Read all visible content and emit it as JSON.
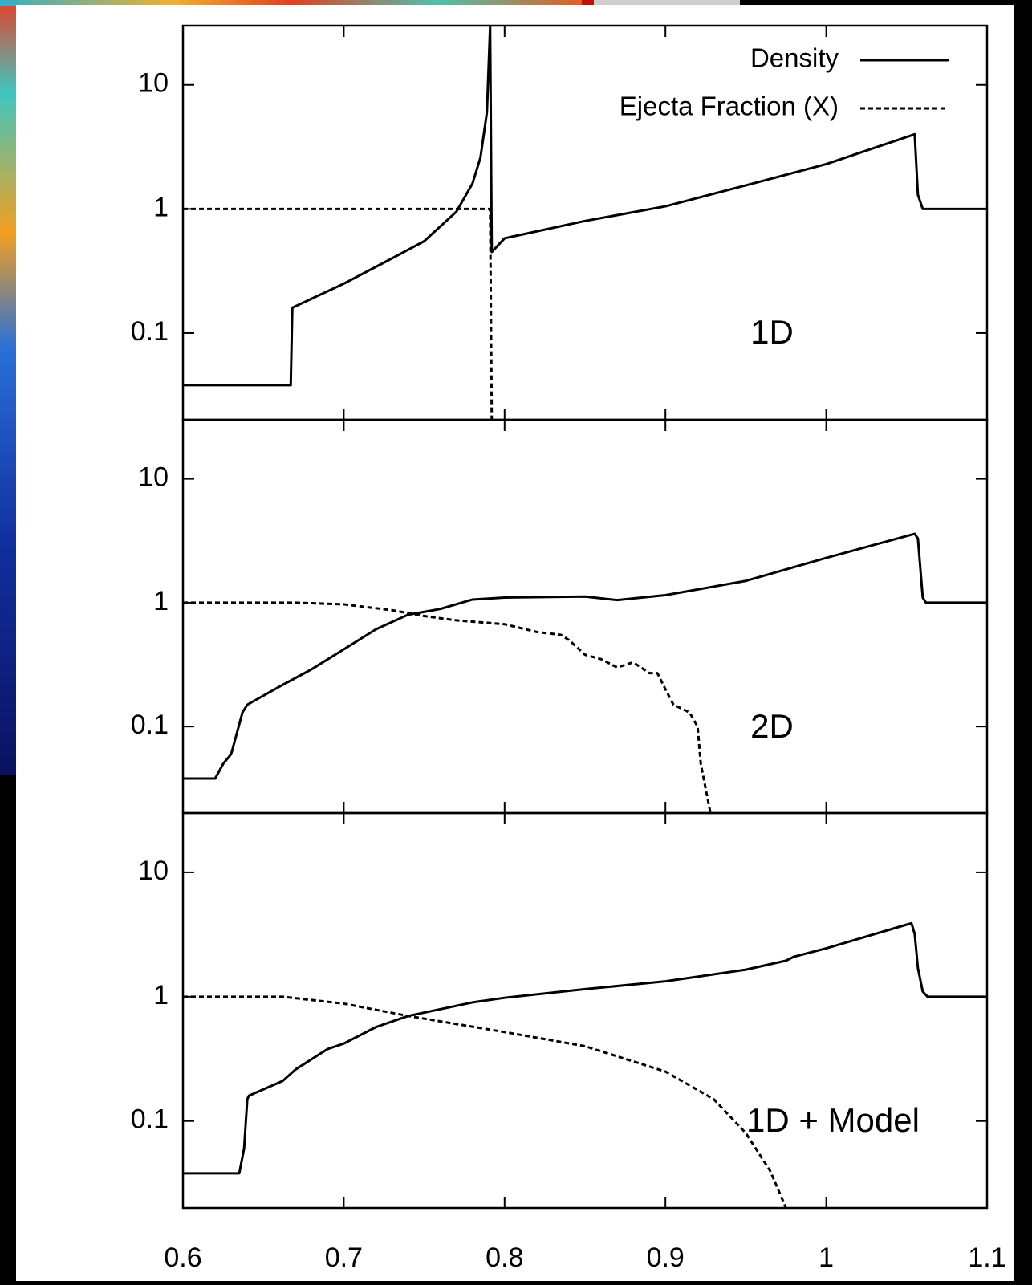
{
  "chart_data": [
    {
      "type": "line",
      "annotation": "1D",
      "ylog": true,
      "ylim": [
        0.02,
        30
      ],
      "yticks": [
        0.1,
        1,
        10
      ],
      "xlim": [
        0.6,
        1.1
      ],
      "xticks": [
        0.6,
        0.7,
        0.8,
        0.9,
        1,
        1.1
      ],
      "xtick_labels": false,
      "legend": "upper right",
      "series": [
        {
          "name": "Density",
          "color": "#000000",
          "style": "solid",
          "x": [
            0.6,
            0.667,
            0.668,
            0.7,
            0.73,
            0.75,
            0.77,
            0.78,
            0.785,
            0.789,
            0.791,
            0.792,
            0.8,
            0.85,
            0.9,
            0.95,
            1.0,
            1.055,
            1.057,
            1.06,
            1.1
          ],
          "values": [
            0.038,
            0.038,
            0.16,
            0.25,
            0.4,
            0.55,
            0.95,
            1.6,
            2.6,
            6,
            30,
            0.45,
            0.58,
            0.8,
            1.05,
            1.55,
            2.3,
            4.0,
            1.3,
            1.0,
            1.0
          ]
        },
        {
          "name": "Ejecta Fraction (X)",
          "color": "#000000",
          "style": "dashed",
          "x": [
            0.6,
            0.791,
            0.792
          ],
          "values": [
            1,
            1,
            0.02
          ]
        }
      ]
    },
    {
      "type": "line",
      "annotation": "2D",
      "ylog": true,
      "ylim": [
        0.02,
        30
      ],
      "yticks": [
        0.1,
        1,
        10
      ],
      "xlim": [
        0.6,
        1.1
      ],
      "xticks": [
        0.6,
        0.7,
        0.8,
        0.9,
        1,
        1.1
      ],
      "xtick_labels": false,
      "series": [
        {
          "color": "#000000",
          "style": "solid",
          "x": [
            0.6,
            0.62,
            0.625,
            0.63,
            0.637,
            0.64,
            0.66,
            0.68,
            0.7,
            0.72,
            0.74,
            0.76,
            0.78,
            0.8,
            0.85,
            0.87,
            0.9,
            0.95,
            1.0,
            1.055,
            1.057,
            1.06,
            1.062,
            1.1
          ],
          "values": [
            0.038,
            0.038,
            0.05,
            0.06,
            0.13,
            0.15,
            0.21,
            0.29,
            0.42,
            0.61,
            0.8,
            0.89,
            1.06,
            1.1,
            1.12,
            1.05,
            1.15,
            1.5,
            2.3,
            3.6,
            3.3,
            1.1,
            1.0,
            1.0
          ]
        },
        {
          "color": "#000000",
          "style": "dashed",
          "x": [
            0.6,
            0.67,
            0.7,
            0.73,
            0.75,
            0.77,
            0.8,
            0.82,
            0.835,
            0.84,
            0.85,
            0.86,
            0.87,
            0.88,
            0.89,
            0.895,
            0.9,
            0.905,
            0.915,
            0.92,
            0.922,
            0.928
          ],
          "values": [
            1,
            1,
            0.97,
            0.87,
            0.78,
            0.72,
            0.67,
            0.58,
            0.55,
            0.5,
            0.38,
            0.35,
            0.3,
            0.33,
            0.27,
            0.27,
            0.2,
            0.15,
            0.13,
            0.1,
            0.05,
            0.02
          ]
        }
      ]
    },
    {
      "type": "line",
      "annotation": "1D + Model",
      "ylog": true,
      "ylim": [
        0.02,
        30
      ],
      "yticks": [
        0.1,
        1,
        10
      ],
      "xlim": [
        0.6,
        1.1
      ],
      "xticks": [
        0.6,
        0.7,
        0.8,
        0.9,
        1,
        1.1
      ],
      "xtick_labels": true,
      "series": [
        {
          "color": "#000000",
          "style": "solid",
          "x": [
            0.6,
            0.635,
            0.638,
            0.64,
            0.641,
            0.662,
            0.67,
            0.69,
            0.7,
            0.72,
            0.74,
            0.78,
            0.8,
            0.85,
            0.9,
            0.95,
            0.975,
            0.98,
            1.0,
            1.05,
            1.053,
            1.055,
            1.057,
            1.06,
            1.063,
            1.1
          ],
          "values": [
            0.038,
            0.038,
            0.06,
            0.15,
            0.16,
            0.21,
            0.26,
            0.38,
            0.42,
            0.57,
            0.7,
            0.9,
            0.98,
            1.15,
            1.33,
            1.65,
            1.95,
            2.1,
            2.45,
            3.8,
            3.9,
            3.2,
            1.7,
            1.1,
            1.0,
            1.0
          ]
        },
        {
          "color": "#000000",
          "style": "dashed",
          "x": [
            0.6,
            0.662,
            0.7,
            0.74,
            0.8,
            0.85,
            0.9,
            0.93,
            0.95,
            0.965,
            0.975
          ],
          "values": [
            1,
            1,
            0.88,
            0.7,
            0.52,
            0.4,
            0.25,
            0.15,
            0.08,
            0.04,
            0.02
          ]
        }
      ]
    }
  ]
}
